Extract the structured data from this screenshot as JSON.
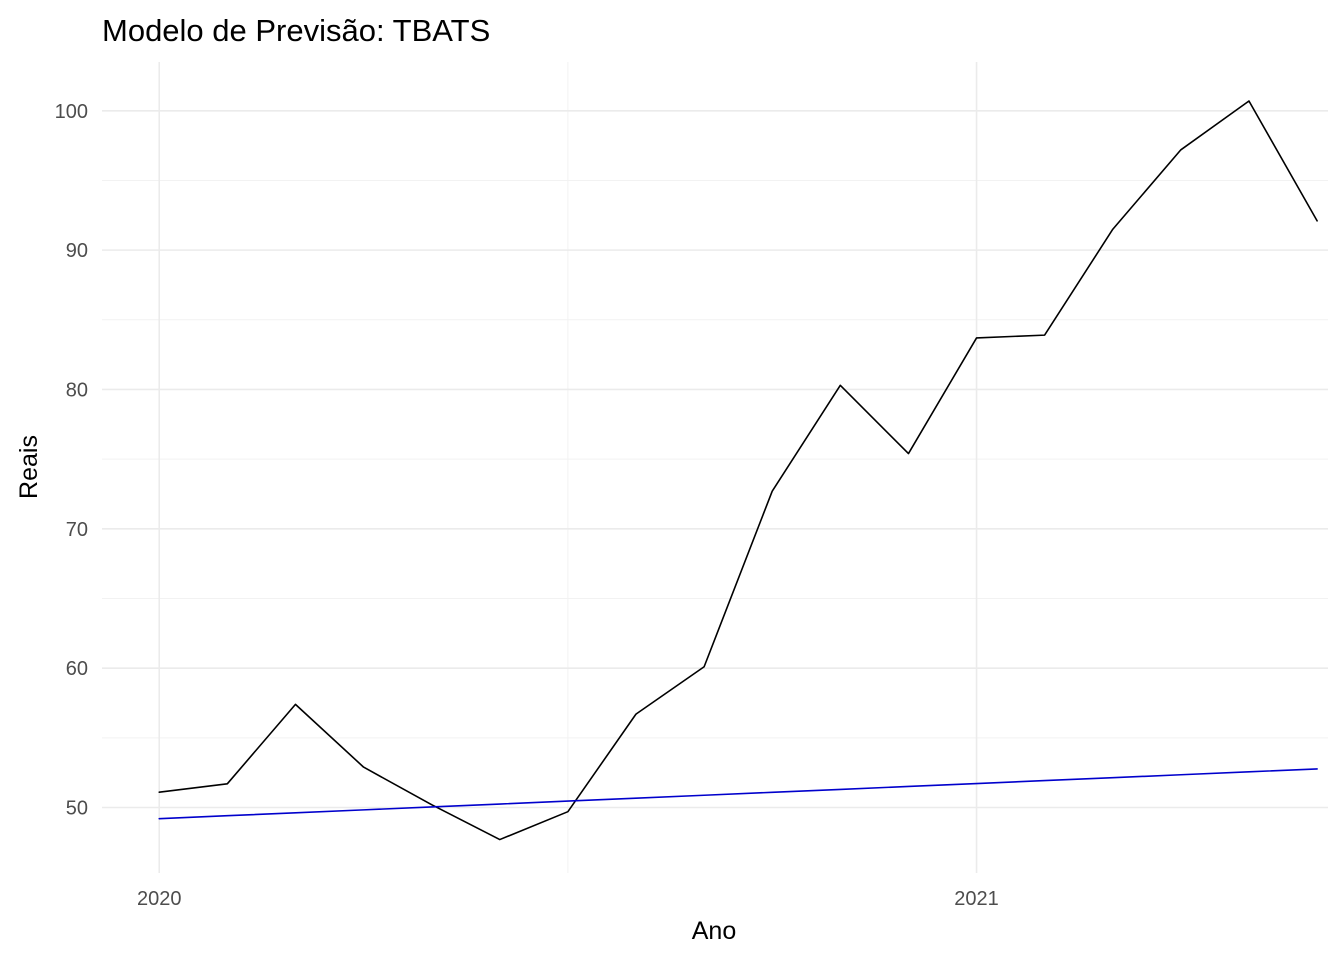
{
  "chart_data": {
    "type": "line",
    "title": "Modelo de Previsão: TBATS",
    "xlabel": "Ano",
    "ylabel": "Reais",
    "xlim": [
      2019.93,
      2021.43
    ],
    "ylim": [
      45.3,
      103.5
    ],
    "x_ticks": [
      2020,
      2021
    ],
    "x_tick_labels": [
      "2020",
      "2021"
    ],
    "x_minor_ticks": [
      2020.5
    ],
    "y_ticks": [
      50,
      60,
      70,
      80,
      90,
      100
    ],
    "y_tick_labels": [
      "50",
      "60",
      "70",
      "80",
      "90",
      "100"
    ],
    "y_minor_ticks": [
      55,
      65,
      75,
      85,
      95
    ],
    "grid": true,
    "legend": "none",
    "x": [
      2020.0,
      2020.0833,
      2020.1667,
      2020.25,
      2020.3333,
      2020.4167,
      2020.5,
      2020.5833,
      2020.6667,
      2020.75,
      2020.8333,
      2020.9167,
      2021.0,
      2021.0833,
      2021.1667,
      2021.25,
      2021.3333,
      2021.4167
    ],
    "series": [
      {
        "color": "#000000",
        "values": [
          51.1,
          51.7,
          57.4,
          52.9,
          50.2,
          47.7,
          49.7,
          56.7,
          60.1,
          72.7,
          80.3,
          75.4,
          83.7,
          83.9,
          91.5,
          97.2,
          100.7,
          92.1
        ]
      },
      {
        "color": "#0000cc",
        "values": [
          49.2,
          49.41,
          49.62,
          49.83,
          50.04,
          50.25,
          50.46,
          50.67,
          50.88,
          51.09,
          51.3,
          51.51,
          51.72,
          51.93,
          52.14,
          52.35,
          52.56,
          52.77
        ]
      }
    ]
  }
}
